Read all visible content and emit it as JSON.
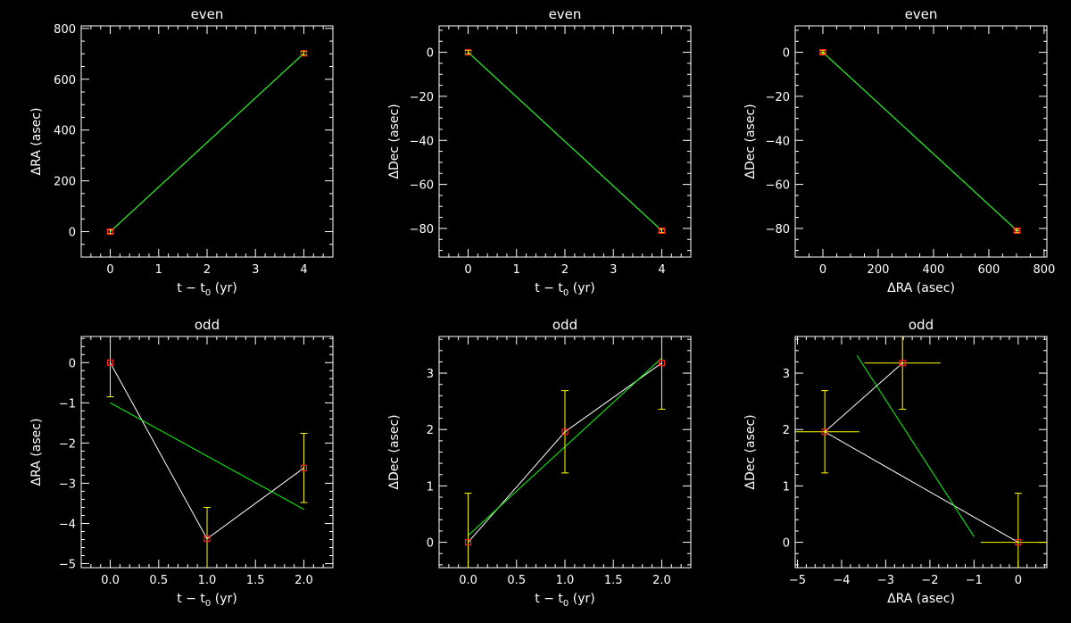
{
  "chart_data": [
    {
      "type": "scatter",
      "title": "even",
      "xlabel": "t − t",
      "xlabel_sub": "0",
      "xlabel_unit": " (yr)",
      "ylabel": "ΔRA (asec)",
      "xlim": [
        -0.6,
        4.6
      ],
      "ylim": [
        -100,
        810
      ],
      "xticks": [
        0,
        1,
        2,
        3,
        4
      ],
      "xtick_labels": [
        "0",
        "1",
        "2",
        "3",
        "4"
      ],
      "xminor": 0.2,
      "yticks": [
        0,
        200,
        400,
        600,
        800
      ],
      "ytick_labels": [
        "0",
        "200",
        "400",
        "600",
        "800"
      ],
      "yminor": 50,
      "points": [
        {
          "x": 0,
          "y": 0,
          "ex": 0,
          "ey": 8
        },
        {
          "x": 4,
          "y": 702,
          "ex": 0,
          "ey": 8
        }
      ],
      "data_line": [
        [
          0,
          0
        ],
        [
          4,
          702
        ]
      ],
      "fit_line": [
        [
          0,
          0
        ],
        [
          4,
          702
        ]
      ],
      "colors": {
        "point": "#ff2020",
        "error": "#ffff00",
        "data": "#ffffff",
        "fit": "#00ff00"
      }
    },
    {
      "type": "scatter",
      "title": "even",
      "xlabel": "t − t",
      "xlabel_sub": "0",
      "xlabel_unit": " (yr)",
      "ylabel": "ΔDec (asec)",
      "xlim": [
        -0.6,
        4.6
      ],
      "ylim": [
        -93,
        12
      ],
      "xticks": [
        0,
        1,
        2,
        3,
        4
      ],
      "xtick_labels": [
        "0",
        "1",
        "2",
        "3",
        "4"
      ],
      "xminor": 0.2,
      "yticks": [
        -80,
        -60,
        -40,
        -20,
        0
      ],
      "ytick_labels": [
        "−80",
        "−60",
        "−40",
        "−20",
        "0"
      ],
      "yminor": 5,
      "points": [
        {
          "x": 0,
          "y": 0,
          "ex": 0,
          "ey": 0.9
        },
        {
          "x": 4,
          "y": -81,
          "ex": 0,
          "ey": 0.9
        }
      ],
      "data_line": [
        [
          0,
          0
        ],
        [
          4,
          -81
        ]
      ],
      "fit_line": [
        [
          0,
          0
        ],
        [
          4,
          -81
        ]
      ],
      "colors": {
        "point": "#ff2020",
        "error": "#ffff00",
        "data": "#ffffff",
        "fit": "#00ff00"
      }
    },
    {
      "type": "scatter",
      "title": "even",
      "xlabel": "ΔRA (asec)",
      "xlabel_sub": "",
      "xlabel_unit": "",
      "ylabel": "ΔDec (asec)",
      "xlim": [
        -100,
        810
      ],
      "ylim": [
        -93,
        12
      ],
      "xticks": [
        0,
        200,
        400,
        600,
        800
      ],
      "xtick_labels": [
        "0",
        "200",
        "400",
        "600",
        "800"
      ],
      "xminor": 50,
      "yticks": [
        -80,
        -60,
        -40,
        -20,
        0
      ],
      "ytick_labels": [
        "−80",
        "−60",
        "−40",
        "−20",
        "0"
      ],
      "yminor": 5,
      "points": [
        {
          "x": 0,
          "y": 0,
          "ex": 8,
          "ey": 0.9
        },
        {
          "x": 702,
          "y": -81,
          "ex": 8,
          "ey": 0.9
        }
      ],
      "data_line": [
        [
          0,
          0
        ],
        [
          702,
          -81
        ]
      ],
      "fit_line": [
        [
          0,
          0
        ],
        [
          702,
          -81
        ]
      ],
      "colors": {
        "point": "#ff2020",
        "error": "#ffff00",
        "data": "#ffffff",
        "fit": "#00ff00"
      }
    },
    {
      "type": "scatter",
      "title": "odd",
      "xlabel": "t − t",
      "xlabel_sub": "0",
      "xlabel_unit": " (yr)",
      "ylabel": "ΔRA (asec)",
      "xlim": [
        -0.3,
        2.3
      ],
      "ylim": [
        -5.1,
        0.65
      ],
      "xticks": [
        0,
        0.5,
        1,
        1.5,
        2
      ],
      "xtick_labels": [
        "0.0",
        "0.5",
        "1.0",
        "1.5",
        "2.0"
      ],
      "xminor": 0.1,
      "yticks": [
        -5,
        -4,
        -3,
        -2,
        -1,
        0
      ],
      "ytick_labels": [
        "−5",
        "−4",
        "−3",
        "−2",
        "−1",
        "0"
      ],
      "yminor": 0.2,
      "points": [
        {
          "x": 0,
          "y": 0,
          "ex": 0,
          "ey": 0.85
        },
        {
          "x": 1,
          "y": -4.38,
          "ex": 0,
          "ey": 0.78
        },
        {
          "x": 2,
          "y": -2.62,
          "ex": 0,
          "ey": 0.86
        }
      ],
      "data_line": [
        [
          0,
          0
        ],
        [
          1,
          -4.38
        ],
        [
          2,
          -2.62
        ]
      ],
      "fit_line": [
        [
          0,
          -1.0
        ],
        [
          2,
          -3.65
        ]
      ],
      "colors": {
        "point": "#ff2020",
        "error": "#ffff00",
        "data": "#ffffff",
        "fit": "#00ff00"
      }
    },
    {
      "type": "scatter",
      "title": "odd",
      "xlabel": "t − t",
      "xlabel_sub": "0",
      "xlabel_unit": " (yr)",
      "ylabel": "ΔDec (asec)",
      "xlim": [
        -0.3,
        2.3
      ],
      "ylim": [
        -0.45,
        3.65
      ],
      "xticks": [
        0,
        0.5,
        1,
        1.5,
        2
      ],
      "xtick_labels": [
        "0.0",
        "0.5",
        "1.0",
        "1.5",
        "2.0"
      ],
      "xminor": 0.1,
      "yticks": [
        0,
        1,
        2,
        3
      ],
      "ytick_labels": [
        "0",
        "1",
        "2",
        "3"
      ],
      "yminor": 0.2,
      "points": [
        {
          "x": 0,
          "y": 0,
          "ex": 0,
          "ey": 0.87
        },
        {
          "x": 1,
          "y": 1.96,
          "ex": 0,
          "ey": 0.73
        },
        {
          "x": 2,
          "y": 3.18,
          "ex": 0,
          "ey": 0.82
        }
      ],
      "data_line": [
        [
          0,
          0
        ],
        [
          1,
          1.96
        ],
        [
          2,
          3.18
        ]
      ],
      "fit_line": [
        [
          0,
          0.12
        ],
        [
          2,
          3.27
        ]
      ],
      "colors": {
        "point": "#ff2020",
        "error": "#ffff00",
        "data": "#ffffff",
        "fit": "#00ff00"
      }
    },
    {
      "type": "scatter",
      "title": "odd",
      "xlabel": "ΔRA (asec)",
      "xlabel_sub": "",
      "xlabel_unit": "",
      "ylabel": "ΔDec (asec)",
      "xlim": [
        -5.05,
        0.65
      ],
      "ylim": [
        -0.45,
        3.65
      ],
      "xticks": [
        -5,
        -4,
        -3,
        -2,
        -1,
        0
      ],
      "xtick_labels": [
        "−5",
        "−4",
        "−3",
        "−2",
        "−1",
        "0"
      ],
      "xminor": 0.2,
      "yticks": [
        0,
        1,
        2,
        3
      ],
      "ytick_labels": [
        "0",
        "1",
        "2",
        "3"
      ],
      "yminor": 0.2,
      "points": [
        {
          "x": 0,
          "y": 0,
          "ex": 0.85,
          "ey": 0.87
        },
        {
          "x": -4.38,
          "y": 1.96,
          "ex": 0.78,
          "ey": 0.73
        },
        {
          "x": -2.62,
          "y": 3.18,
          "ex": 0.86,
          "ey": 0.82
        }
      ],
      "data_line": [
        [
          0,
          0
        ],
        [
          -4.38,
          1.96
        ],
        [
          -2.62,
          3.18
        ]
      ],
      "fit_line": [
        [
          -3.65,
          3.31
        ],
        [
          -1.0,
          0.1
        ]
      ],
      "colors": {
        "point": "#ff2020",
        "error": "#ffff00",
        "data": "#ffffff",
        "fit": "#00ff00"
      }
    }
  ]
}
